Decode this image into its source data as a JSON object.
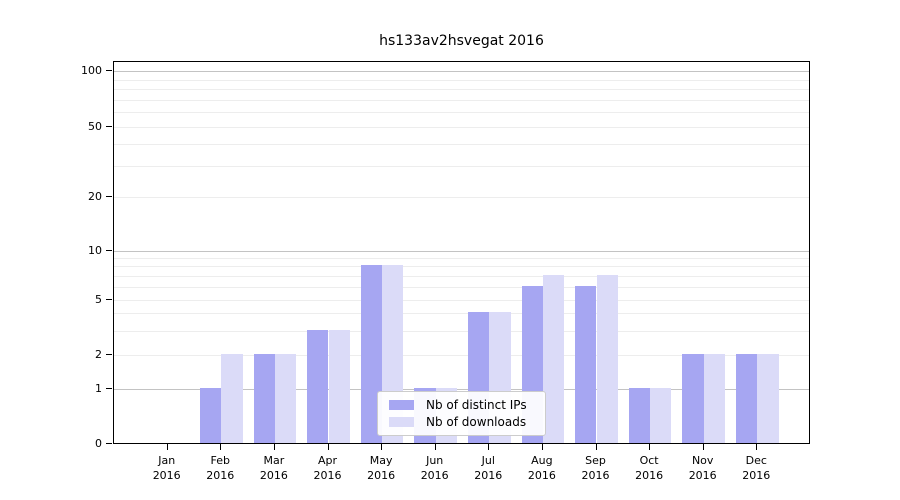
{
  "chart_data": {
    "type": "bar",
    "title": "hs133av2hsvegat 2016",
    "year_label": "2016",
    "categories": [
      "Jan",
      "Feb",
      "Mar",
      "Apr",
      "May",
      "Jun",
      "Jul",
      "Aug",
      "Sep",
      "Oct",
      "Nov",
      "Dec"
    ],
    "series": [
      {
        "name": "Nb of distinct IPs",
        "color": "#a6a6f2",
        "values": [
          0,
          1,
          2,
          3,
          8,
          1,
          4,
          6,
          6,
          1,
          2,
          2
        ]
      },
      {
        "name": "Nb of downloads",
        "color": "#dbdbf8",
        "values": [
          0,
          2,
          2,
          3,
          8,
          1,
          4,
          7,
          7,
          1,
          2,
          2
        ]
      }
    ],
    "xlabel": "",
    "ylabel": "",
    "yscale": "log-like (0 baseline, log spacing above 1)",
    "ylim": [
      0,
      100
    ],
    "yticks": [
      0,
      1,
      2,
      5,
      10,
      20,
      50,
      100
    ],
    "minor_gridlines": [
      3,
      4,
      6,
      7,
      8,
      9,
      30,
      40,
      60,
      70,
      80,
      90
    ],
    "grid": true,
    "legend_position": "lower-center-inside"
  },
  "colors": {
    "bar_distinct_ips": "#a6a6f2",
    "bar_downloads": "#dbdbf8",
    "major_gridline": "#c3c3c3",
    "minor_gridline": "#ededed",
    "axis_line": "#000000",
    "background": "#ffffff",
    "legend_border": "#cccccc"
  }
}
